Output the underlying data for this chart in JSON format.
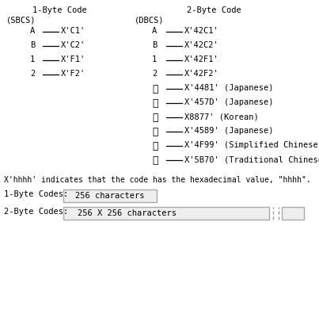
{
  "title_1byte": "1-Byte Code",
  "title_2byte": "2-Byte Code",
  "subtitle_1byte": "(SBCS)",
  "subtitle_2byte": "(DBCS)",
  "sbcs_rows": [
    {
      "char": "A",
      "code": "X'C1'"
    },
    {
      "char": "B",
      "code": "X'C2'"
    },
    {
      "char": "1",
      "code": "X'F1'"
    },
    {
      "char": "2",
      "code": "X'F2'"
    }
  ],
  "dbcs_rows": [
    {
      "char": "A",
      "code": "X'42C1'",
      "label": "",
      "cjk": false
    },
    {
      "char": "B",
      "code": "X'42C2'",
      "label": "",
      "cjk": false
    },
    {
      "char": "1",
      "code": "X'42F1'",
      "label": "",
      "cjk": false
    },
    {
      "char": "2",
      "code": "X'42F2'",
      "label": "",
      "cjk": false
    },
    {
      "char": "あ",
      "code": "X'4481'",
      "label": " (Japanese)",
      "cjk": true
    },
    {
      "char": "美",
      "code": "X'457D'",
      "label": " (Japanese)",
      "cjk": true
    },
    {
      "char": "정",
      "code": "X8877'",
      "label": " (Korean)",
      "cjk": true
    },
    {
      "char": "橋",
      "code": "X'4589'",
      "label": " (Japanese)",
      "cjk": true
    },
    {
      "char": "进",
      "code": "X'4F99'",
      "label": " (Simplified Chinese)",
      "cjk": true
    },
    {
      "char": "進",
      "code": "X'5B70'",
      "label": " (Traditional Chinese)",
      "cjk": true
    }
  ],
  "footnote": "X'hhhh' indicates that the code has the hexadecimal value, \"hhhh\".",
  "label_1byte": "1-Byte Codes:",
  "label_2byte": "2-Byte Codes:",
  "box_1byte": "256 characters",
  "box_2byte": "256 X 256 characters",
  "bg_color": "#ffffff",
  "text_color": "#000000",
  "font_size": 7.5,
  "cjk_font_size": 9.0
}
